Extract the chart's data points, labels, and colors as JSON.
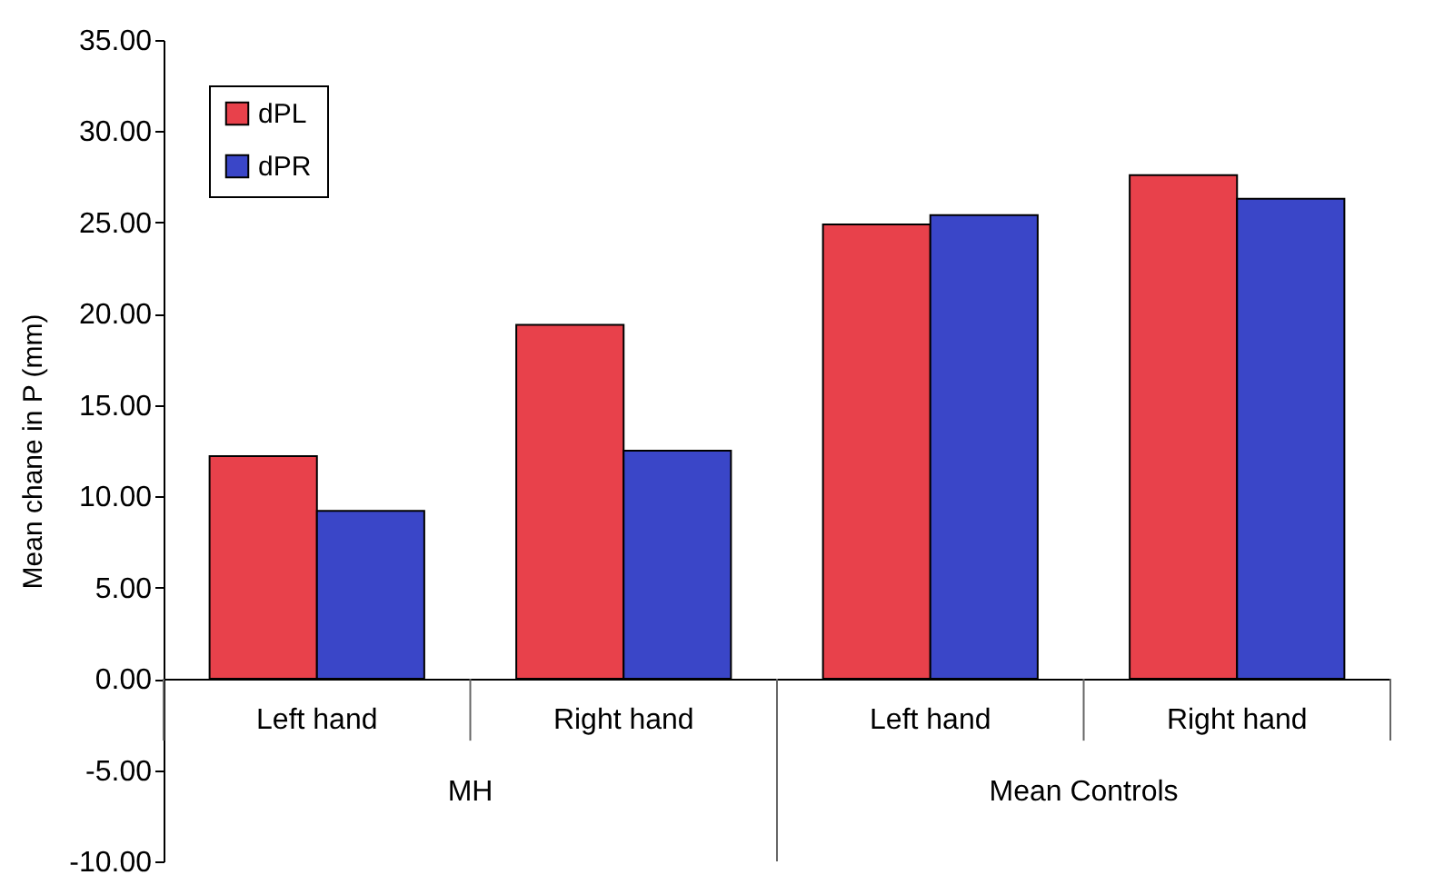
{
  "chart_data": {
    "type": "bar",
    "ylabel": "Mean chane in P (mm)",
    "categories": [
      "Left hand",
      "Right hand",
      "Left hand",
      "Right hand"
    ],
    "series": [
      {
        "name": "dPL",
        "color": "#e8414b",
        "values": [
          12.2,
          19.4,
          24.9,
          27.6
        ]
      },
      {
        "name": "dPR",
        "color": "#3a46c8",
        "values": [
          9.2,
          12.5,
          25.4,
          26.3
        ]
      }
    ],
    "ylim": [
      -10,
      35
    ],
    "yticks": [
      {
        "value": -10,
        "label": "-10.00"
      },
      {
        "value": -5,
        "label": "-5.00"
      },
      {
        "value": 0,
        "label": "0.00"
      },
      {
        "value": 5,
        "label": "5.00"
      },
      {
        "value": 10,
        "label": "10.00"
      },
      {
        "value": 15,
        "label": "15.00"
      },
      {
        "value": 20,
        "label": "20.00"
      },
      {
        "value": 25,
        "label": "25.00"
      },
      {
        "value": 30,
        "label": "30.00"
      },
      {
        "value": 35,
        "label": "35.00"
      }
    ],
    "annotations": [
      "MH",
      "Mean Controls"
    ],
    "legend": "top left",
    "grid": false
  }
}
